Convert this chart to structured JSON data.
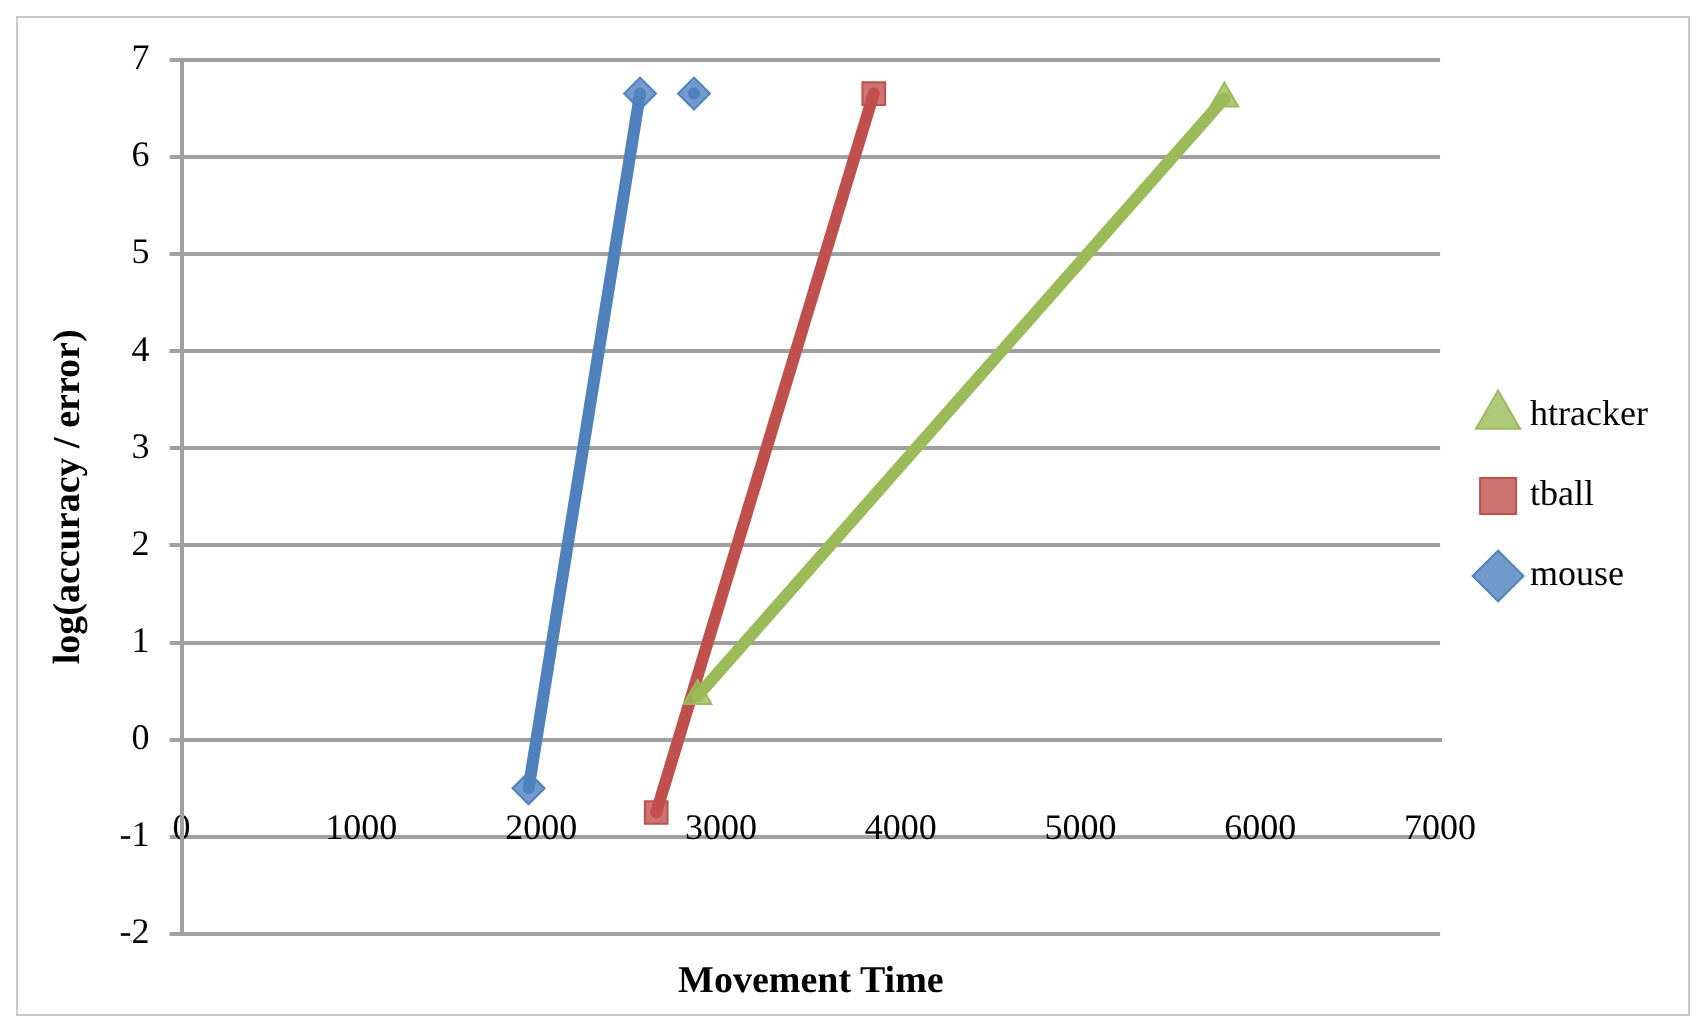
{
  "chart_data": {
    "type": "line",
    "xlabel": "Movement Time",
    "ylabel": "log(accuracy / error)",
    "xlim": [
      0,
      7000
    ],
    "xticks": [
      0,
      1000,
      2000,
      3000,
      4000,
      5000,
      6000,
      7000
    ],
    "ylim": [
      -2,
      7
    ],
    "yticks": [
      -2,
      -1,
      0,
      1,
      2,
      3,
      4,
      5,
      6,
      7
    ],
    "grid": "y",
    "legend": "right",
    "line_style": "solid",
    "series": [
      {
        "name": "mouse",
        "color": "#4f81bd",
        "marker": "diamond",
        "x": [
          1930,
          2550,
          2700,
          2850
        ],
        "values": [
          -0.5,
          6.65,
          null,
          6.65
        ]
      },
      {
        "name": "tball",
        "color": "#c0504d",
        "marker": "square",
        "x": [
          2640,
          3850
        ],
        "values": [
          -0.75,
          6.65
        ]
      },
      {
        "name": "htracker",
        "color": "#9bbb59",
        "marker": "triangle",
        "x": [
          2870,
          5800
        ],
        "values": [
          0.45,
          6.6
        ]
      }
    ]
  }
}
